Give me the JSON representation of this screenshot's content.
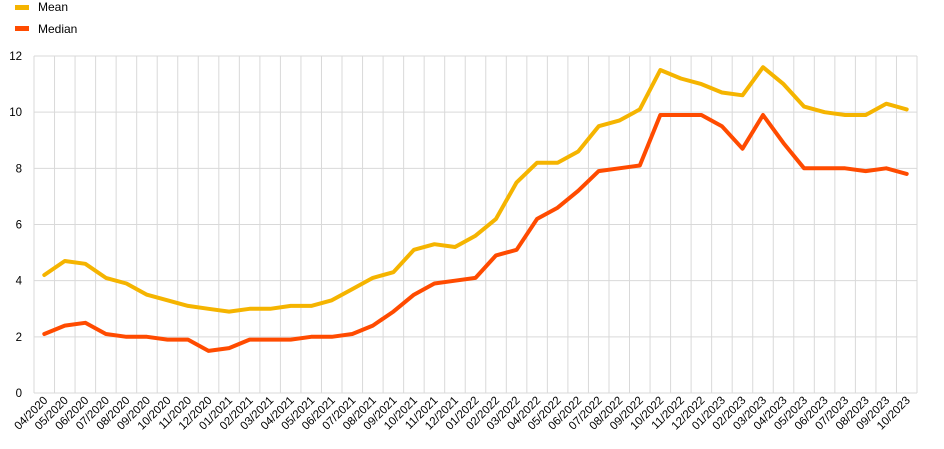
{
  "chart_data": {
    "type": "line",
    "categories": [
      "04/2020",
      "05/2020",
      "06/2020",
      "07/2020",
      "08/2020",
      "09/2020",
      "10/2020",
      "11/2020",
      "12/2020",
      "01/2021",
      "02/2021",
      "03/2021",
      "04/2021",
      "05/2021",
      "06/2021",
      "07/2021",
      "08/2021",
      "09/2021",
      "10/2021",
      "11/2021",
      "12/2021",
      "01/2022",
      "02/2022",
      "03/2022",
      "04/2022",
      "05/2022",
      "06/2022",
      "07/2022",
      "08/2022",
      "09/2022",
      "10/2022",
      "11/2022",
      "12/2022",
      "01/2023",
      "02/2023",
      "03/2023",
      "04/2023",
      "05/2023",
      "06/2023",
      "07/2023",
      "08/2023",
      "09/2023",
      "10/2023"
    ],
    "series": [
      {
        "name": "Mean",
        "color": "#f5b400",
        "values": [
          4.2,
          4.7,
          4.6,
          4.1,
          3.9,
          3.5,
          3.3,
          3.1,
          3.0,
          2.9,
          3.0,
          3.0,
          3.1,
          3.1,
          3.3,
          3.7,
          4.1,
          4.3,
          5.1,
          5.3,
          5.2,
          5.6,
          6.2,
          7.5,
          8.2,
          8.2,
          8.6,
          9.5,
          9.7,
          10.1,
          11.5,
          11.2,
          11.0,
          10.7,
          10.6,
          11.6,
          11.0,
          10.2,
          10.0,
          9.9,
          9.9,
          10.3,
          10.1
        ]
      },
      {
        "name": "Median",
        "color": "#ff4b00",
        "values": [
          2.1,
          2.4,
          2.5,
          2.1,
          2.0,
          2.0,
          1.9,
          1.9,
          1.5,
          1.6,
          1.9,
          1.9,
          1.9,
          2.0,
          2.0,
          2.1,
          2.4,
          2.9,
          3.5,
          3.9,
          4.0,
          4.1,
          4.9,
          5.1,
          6.2,
          6.6,
          7.2,
          7.9,
          8.0,
          8.1,
          9.9,
          9.9,
          9.9,
          9.5,
          8.7,
          9.9,
          8.9,
          8.0,
          8.0,
          8.0,
          7.9,
          8.0,
          7.8
        ]
      }
    ],
    "yticks": [
      "0",
      "2",
      "4",
      "6",
      "8",
      "10",
      "12"
    ],
    "ylim": [
      0,
      12
    ],
    "grid": true,
    "legend_position": "top-left"
  }
}
